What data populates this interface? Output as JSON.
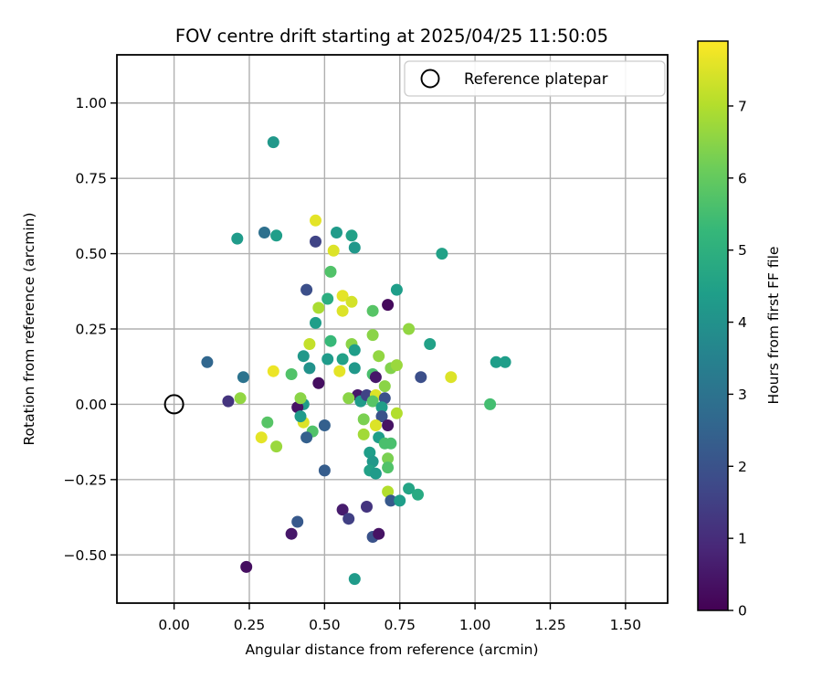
{
  "figure": {
    "background": "#ffffff",
    "grid_color": "#b0b0b0",
    "spine_color": "#000000",
    "marker_radius": 6.5
  },
  "chart_data": {
    "type": "scatter",
    "title": "FOV centre drift starting at 2025/04/25 11:50:05",
    "xlabel": "Angular distance from reference (arcmin)",
    "ylabel": "Rotation from reference (arcmin)",
    "xlim": [
      -0.19,
      1.64
    ],
    "ylim": [
      -0.66,
      1.16
    ],
    "grid": true,
    "x_axis": {
      "tick_values": [
        0.0,
        0.25,
        0.5,
        0.75,
        1.0,
        1.25,
        1.5
      ],
      "tick_labels": [
        "0.00",
        "0.25",
        "0.50",
        "0.75",
        "1.00",
        "1.25",
        "1.50"
      ]
    },
    "y_axis": {
      "tick_values": [
        1.0,
        0.75,
        0.5,
        0.25,
        0.0,
        -0.25,
        -0.5
      ],
      "tick_labels": [
        "1.00",
        "0.75",
        "0.50",
        "0.25",
        "0.00",
        "−0.25",
        "−0.50"
      ]
    },
    "legend": {
      "label": "Reference platepar",
      "marker": "open-circle",
      "position": "upper right"
    },
    "colorbar": {
      "label": "Hours from first FF file",
      "colormap": "viridis",
      "vmin": 0,
      "vmax": 7.9,
      "tick_values": [
        0,
        1,
        2,
        3,
        4,
        5,
        6,
        7
      ],
      "tick_labels": [
        "0",
        "1",
        "2",
        "3",
        "4",
        "5",
        "6",
        "7"
      ]
    },
    "reference_point": {
      "x": 0.0,
      "y": 0.0
    },
    "points_format": [
      "angular_distance_arcmin",
      "rotation_arcmin",
      "hours_from_first_ff_file"
    ],
    "points": [
      [
        0.33,
        0.87,
        4.2
      ],
      [
        0.21,
        0.55,
        4.3
      ],
      [
        0.3,
        0.57,
        2.9
      ],
      [
        0.34,
        0.56,
        4.4
      ],
      [
        0.47,
        0.61,
        7.6
      ],
      [
        0.47,
        0.54,
        1.6
      ],
      [
        0.54,
        0.57,
        4.3
      ],
      [
        0.59,
        0.56,
        4.5
      ],
      [
        0.53,
        0.51,
        7.5
      ],
      [
        0.6,
        0.52,
        4.2
      ],
      [
        0.52,
        0.44,
        5.7
      ],
      [
        0.44,
        0.38,
        1.9
      ],
      [
        0.74,
        0.38,
        4.4
      ],
      [
        0.89,
        0.5,
        4.5
      ],
      [
        0.56,
        0.36,
        7.6
      ],
      [
        0.51,
        0.35,
        4.9
      ],
      [
        0.59,
        0.34,
        7.4
      ],
      [
        0.71,
        0.33,
        0.2
      ],
      [
        0.66,
        0.31,
        5.8
      ],
      [
        0.48,
        0.32,
        6.9
      ],
      [
        0.56,
        0.31,
        7.5
      ],
      [
        0.47,
        0.27,
        4.4
      ],
      [
        0.66,
        0.23,
        6.5
      ],
      [
        0.78,
        0.25,
        6.6
      ],
      [
        0.85,
        0.2,
        4.5
      ],
      [
        0.45,
        0.2,
        7.2
      ],
      [
        0.52,
        0.21,
        5.3
      ],
      [
        0.59,
        0.2,
        6.5
      ],
      [
        0.6,
        0.18,
        4.4
      ],
      [
        0.43,
        0.16,
        4.2
      ],
      [
        0.45,
        0.12,
        4.0
      ],
      [
        0.51,
        0.15,
        4.3
      ],
      [
        0.56,
        0.15,
        4.5
      ],
      [
        0.55,
        0.11,
        7.6
      ],
      [
        0.6,
        0.12,
        4.2
      ],
      [
        0.68,
        0.16,
        6.6
      ],
      [
        0.72,
        0.12,
        6.4
      ],
      [
        0.74,
        0.13,
        6.7
      ],
      [
        0.11,
        0.14,
        2.6
      ],
      [
        0.23,
        0.09,
        3.0
      ],
      [
        0.33,
        0.11,
        7.7
      ],
      [
        0.39,
        0.1,
        5.7
      ],
      [
        0.82,
        0.09,
        1.9
      ],
      [
        0.92,
        0.09,
        7.5
      ],
      [
        1.07,
        0.14,
        4.4
      ],
      [
        1.1,
        0.14,
        4.4
      ],
      [
        1.05,
        0.0,
        5.5
      ],
      [
        0.18,
        0.01,
        1.2
      ],
      [
        0.22,
        0.02,
        6.6
      ],
      [
        0.48,
        0.07,
        0.3
      ],
      [
        0.43,
        0.0,
        4.3
      ],
      [
        0.41,
        -0.01,
        0.4
      ],
      [
        0.42,
        0.02,
        6.5
      ],
      [
        0.43,
        -0.06,
        7.5
      ],
      [
        0.31,
        -0.06,
        5.8
      ],
      [
        0.29,
        -0.11,
        7.6
      ],
      [
        0.34,
        -0.14,
        6.7
      ],
      [
        0.61,
        0.03,
        0.5
      ],
      [
        0.62,
        0.01,
        4.3
      ],
      [
        0.58,
        0.02,
        6.5
      ],
      [
        0.64,
        0.03,
        1.6
      ],
      [
        0.67,
        0.03,
        7.5
      ],
      [
        0.66,
        0.1,
        5.6
      ],
      [
        0.67,
        0.09,
        0.5
      ],
      [
        0.7,
        0.06,
        6.5
      ],
      [
        0.7,
        0.02,
        2.0
      ],
      [
        0.66,
        0.01,
        5.8
      ],
      [
        0.69,
        -0.01,
        4.4
      ],
      [
        0.74,
        -0.03,
        7.0
      ],
      [
        0.69,
        -0.04,
        2.0
      ],
      [
        0.67,
        -0.07,
        7.5
      ],
      [
        0.63,
        -0.05,
        6.3
      ],
      [
        0.71,
        -0.07,
        0.4
      ],
      [
        0.63,
        -0.1,
        6.8
      ],
      [
        0.42,
        -0.04,
        4.3
      ],
      [
        0.46,
        -0.09,
        5.7
      ],
      [
        0.44,
        -0.11,
        2.4
      ],
      [
        0.5,
        -0.07,
        2.4
      ],
      [
        0.5,
        -0.22,
        2.3
      ],
      [
        0.65,
        -0.16,
        4.4
      ],
      [
        0.66,
        -0.19,
        4.2
      ],
      [
        0.65,
        -0.22,
        4.5
      ],
      [
        0.67,
        -0.23,
        4.3
      ],
      [
        0.68,
        -0.11,
        4.4
      ],
      [
        0.7,
        -0.13,
        5.6
      ],
      [
        0.72,
        -0.13,
        5.6
      ],
      [
        0.71,
        -0.18,
        6.3
      ],
      [
        0.71,
        -0.21,
        5.7
      ],
      [
        0.71,
        -0.29,
        7.0
      ],
      [
        0.72,
        -0.32,
        2.2
      ],
      [
        0.75,
        -0.32,
        4.4
      ],
      [
        0.78,
        -0.28,
        4.6
      ],
      [
        0.81,
        -0.3,
        4.8
      ],
      [
        0.56,
        -0.35,
        0.6
      ],
      [
        0.58,
        -0.38,
        1.5
      ],
      [
        0.64,
        -0.34,
        1.2
      ],
      [
        0.41,
        -0.39,
        2.2
      ],
      [
        0.39,
        -0.43,
        0.5
      ],
      [
        0.66,
        -0.44,
        2.0
      ],
      [
        0.68,
        -0.43,
        0.4
      ],
      [
        0.24,
        -0.54,
        0.3
      ],
      [
        0.6,
        -0.58,
        4.3
      ]
    ]
  }
}
